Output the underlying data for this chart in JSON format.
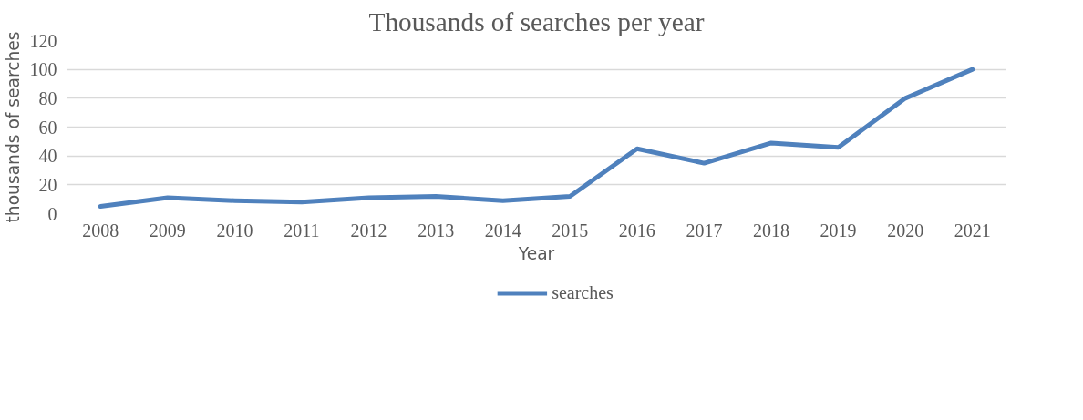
{
  "chart_data": {
    "type": "line",
    "title": "Thousands of searches per year",
    "xlabel": "Year",
    "ylabel": "thousands of searches",
    "categories": [
      "2008",
      "2009",
      "2010",
      "2011",
      "2012",
      "2013",
      "2014",
      "2015",
      "2016",
      "2017",
      "2018",
      "2019",
      "2020",
      "2021"
    ],
    "series": [
      {
        "name": "searches",
        "color": "#4f81bd",
        "values": [
          5,
          11,
          9,
          8,
          11,
          12,
          9,
          12,
          45,
          35,
          49,
          46,
          80,
          100
        ]
      }
    ],
    "ylim": [
      0,
      120
    ],
    "yticks": [
      0,
      20,
      40,
      60,
      80,
      100,
      120
    ],
    "grid": "y",
    "legend": "bottom",
    "marker": "none",
    "line_style": "solid"
  }
}
